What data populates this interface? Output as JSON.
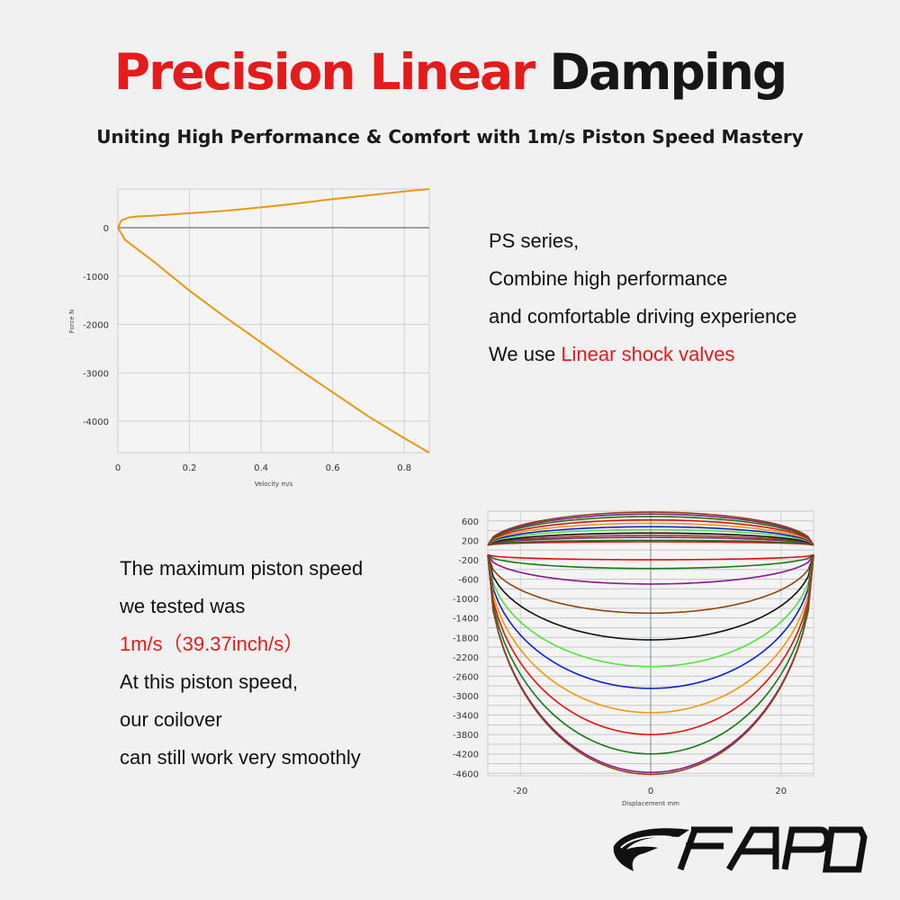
{
  "header": {
    "title_red": "Precision Linear",
    "title_dark": "Damping",
    "subtitle": "Uniting High Performance & Comfort with 1m/s Piston Speed Mastery"
  },
  "right_text": {
    "line1": "PS series,",
    "line2": "Combine high performance",
    "line3": "and comfortable driving experience",
    "line4_prefix": "We use ",
    "line4_highlight": "Linear shock valves"
  },
  "left_text": {
    "line1": "The maximum piston speed",
    "line2": "we tested was",
    "line3_highlight": "1m/s（39.37inch/s）",
    "line4": "At this piston speed,",
    "line5": "our coilover",
    "line6": "can still work very smoothly"
  },
  "logo": {
    "text": "FAPO"
  },
  "colors": {
    "brand_red": "#e31b1b",
    "curve_orange": "#e8980f"
  },
  "chart_data": [
    {
      "type": "line",
      "title": "",
      "xlabel": "Velocity m/s",
      "ylabel": "Force N",
      "xlim": [
        0,
        0.87
      ],
      "ylim": [
        -4650,
        800
      ],
      "x_ticks": [
        "0",
        "0.2",
        "0.4",
        "0.6",
        "0.8"
      ],
      "y_ticks": [
        "0",
        "-1000",
        "-2000",
        "-3000",
        "-4000"
      ],
      "grid": true,
      "series": [
        {
          "color": "#e8980f",
          "points": [
            [
              0,
              0
            ],
            [
              0.01,
              150
            ],
            [
              0.03,
              210
            ],
            [
              0.05,
              230
            ],
            [
              0.1,
              250
            ],
            [
              0.2,
              300
            ],
            [
              0.3,
              350
            ],
            [
              0.4,
              420
            ],
            [
              0.5,
              500
            ],
            [
              0.6,
              590
            ],
            [
              0.7,
              670
            ],
            [
              0.8,
              750
            ],
            [
              0.87,
              800
            ]
          ]
        },
        {
          "color": "#e8980f",
          "points": [
            [
              0,
              0
            ],
            [
              0.02,
              -250
            ],
            [
              0.1,
              -700
            ],
            [
              0.2,
              -1300
            ],
            [
              0.3,
              -1850
            ],
            [
              0.4,
              -2370
            ],
            [
              0.5,
              -2900
            ],
            [
              0.6,
              -3400
            ],
            [
              0.7,
              -3900
            ],
            [
              0.8,
              -4350
            ],
            [
              0.87,
              -4650
            ]
          ]
        }
      ]
    },
    {
      "type": "line",
      "title": "",
      "xlabel": "Displacement mm",
      "ylabel": "",
      "xlim": [
        -25,
        25
      ],
      "ylim": [
        -4650,
        800
      ],
      "x_ticks": [
        "-20",
        "0",
        "20"
      ],
      "y_ticks": [
        "600",
        "200",
        "-200",
        "-600",
        "-1000",
        "-1400",
        "-1800",
        "-2200",
        "-2600",
        "-3000",
        "-3400",
        "-3800",
        "-4200",
        "-4600"
      ],
      "grid": true,
      "series": [
        {
          "color": "#e01010",
          "max_force": 170,
          "min_force": -200
        },
        {
          "color": "#137a13",
          "max_force": 200,
          "min_force": -380
        },
        {
          "color": "#8a1a8a",
          "max_force": 260,
          "min_force": -700
        },
        {
          "color": "#8b4513",
          "max_force": 300,
          "min_force": -1300
        },
        {
          "color": "#111111",
          "max_force": 350,
          "min_force": -1850
        },
        {
          "color": "#55e040",
          "max_force": 420,
          "min_force": -2400
        },
        {
          "color": "#1020d0",
          "max_force": 480,
          "min_force": -2850
        },
        {
          "color": "#f0980f",
          "max_force": 550,
          "min_force": -3350
        },
        {
          "color": "#e01010",
          "max_force": 620,
          "min_force": -3800
        },
        {
          "color": "#137a13",
          "max_force": 690,
          "min_force": -4200
        },
        {
          "color": "#8a1a8a",
          "max_force": 740,
          "min_force": -4580
        },
        {
          "color": "#8b4513",
          "max_force": 780,
          "min_force": -4620
        }
      ]
    }
  ]
}
